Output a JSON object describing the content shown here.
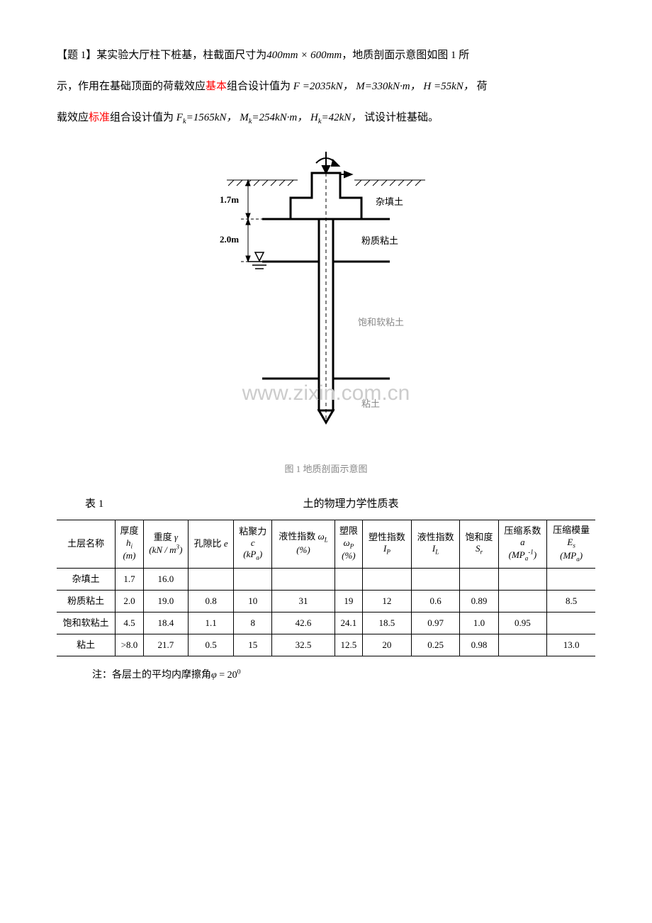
{
  "problem": {
    "title_prefix": "【题 1】",
    "sentence1_a": "某实验大厅柱下桩基，柱截面尺寸为",
    "cross_section": "400mm × 600mm",
    "sentence1_b": "，地质剖面示意图如图 1 所",
    "sentence2_a": "示，作用在基础顶面的荷载效应",
    "basic_word": "基本",
    "sentence2_b": "组合设计值为",
    "F_label": "F =",
    "F_val": "2035kN，",
    "M_label": "M=",
    "M_val": "330kN·m，",
    "H_label": "H =",
    "H_val": "55kN，",
    "sentence2_c": "荷",
    "sentence3_a": "载效应",
    "standard_word": "标准",
    "sentence3_b": "组合设计值为",
    "Fk_label": "F",
    "Fk_sub": "k",
    "Fk_val": "=1565kN，",
    "Mk_label": "M",
    "Mk_sub": "k",
    "Mk_val": "=254kN·m，",
    "Hk_label": "H",
    "Hk_sub": "k",
    "Hk_val": "=42kN，",
    "sentence3_c": "试设计桩基础。"
  },
  "diagram": {
    "dim_1_7": "1.7m",
    "dim_2_0": "2.0m",
    "layer1": "杂填土",
    "layer2": "粉质粘土",
    "layer3": "饱和软粘土",
    "layer4": "粘土",
    "caption": "图 1  地质剖面示意图",
    "watermark": "www.zixin.com.cn",
    "stroke": "#000000",
    "fill_bg": "#ffffff",
    "label_font_size": 13,
    "dim_font_size": 13,
    "stroke_width_main": 3,
    "stroke_width_thin": 1.2
  },
  "table": {
    "label": "表 1",
    "title": "土的物理力学性质表",
    "columns": {
      "name": "土层名称",
      "thickness_label": "厚度",
      "thickness_sym": "h",
      "thickness_sub": "i",
      "thickness_unit": "(m)",
      "gamma_label": "重度",
      "gamma_sym": "γ",
      "gamma_unit_top": "(kN / m",
      "gamma_unit_sup": "3",
      "gamma_unit_end": ")",
      "e_label": "孔隙比",
      "e_sym": "e",
      "c_label": "粘聚力",
      "c_sym": "c",
      "c_unit": "(kP",
      "c_unit_sub": "a",
      "c_unit_end": ")",
      "wL_label": "液性指数",
      "wL_sym": "ω",
      "wL_sub": "L",
      "wL_unit": "(%)",
      "wP_label": "塑限",
      "wP_sym": "ω",
      "wP_sub": "P",
      "wP_unit": "(%)",
      "Ip_label": "塑性指数",
      "Ip_sym": "I",
      "Ip_sub": "P",
      "IL_label": "液性指数",
      "IL_sym": "I",
      "IL_sub": "L",
      "Sr_label": "饱和度",
      "Sr_sym": "S",
      "Sr_sub": "r",
      "a_label": "压缩系数",
      "a_sym": "a",
      "a_unit_open": "(MP",
      "a_unit_sub": "a",
      "a_unit_sup": "-1",
      "a_unit_close": ")",
      "Es_label": "压缩模量",
      "Es_sym": "E",
      "Es_sub": "s",
      "Es_unit_open": "(MP",
      "Es_unit_sub": "a",
      "Es_unit_close": ")"
    },
    "rows": [
      {
        "name": "杂填土",
        "h": "1.7",
        "gamma": "16.0",
        "e": "",
        "c": "",
        "wL": "",
        "wP": "",
        "Ip": "",
        "IL": "",
        "Sr": "",
        "a": "",
        "Es": ""
      },
      {
        "name": "粉质粘土",
        "h": "2.0",
        "gamma": "19.0",
        "e": "0.8",
        "c": "10",
        "wL": "31",
        "wP": "19",
        "Ip": "12",
        "IL": "0.6",
        "Sr": "0.89",
        "a": "",
        "Es": "8.5"
      },
      {
        "name": "饱和软粘土",
        "h": "4.5",
        "gamma": "18.4",
        "e": "1.1",
        "c": "8",
        "wL": "42.6",
        "wP": "24.1",
        "Ip": "18.5",
        "IL": "0.97",
        "Sr": "1.0",
        "a": "0.95",
        "Es": ""
      },
      {
        "name": "粘土",
        "h": ">8.0",
        "gamma": "21.7",
        "e": "0.5",
        "c": "15",
        "wL": "32.5",
        "wP": "12.5",
        "Ip": "20",
        "IL": "0.25",
        "Sr": "0.98",
        "a": "",
        "Es": "13.0"
      }
    ]
  },
  "footnote": {
    "prefix": "注：各层土的平均内摩擦角",
    "sym": "φ",
    "eq": " = 20",
    "sup": "0"
  }
}
